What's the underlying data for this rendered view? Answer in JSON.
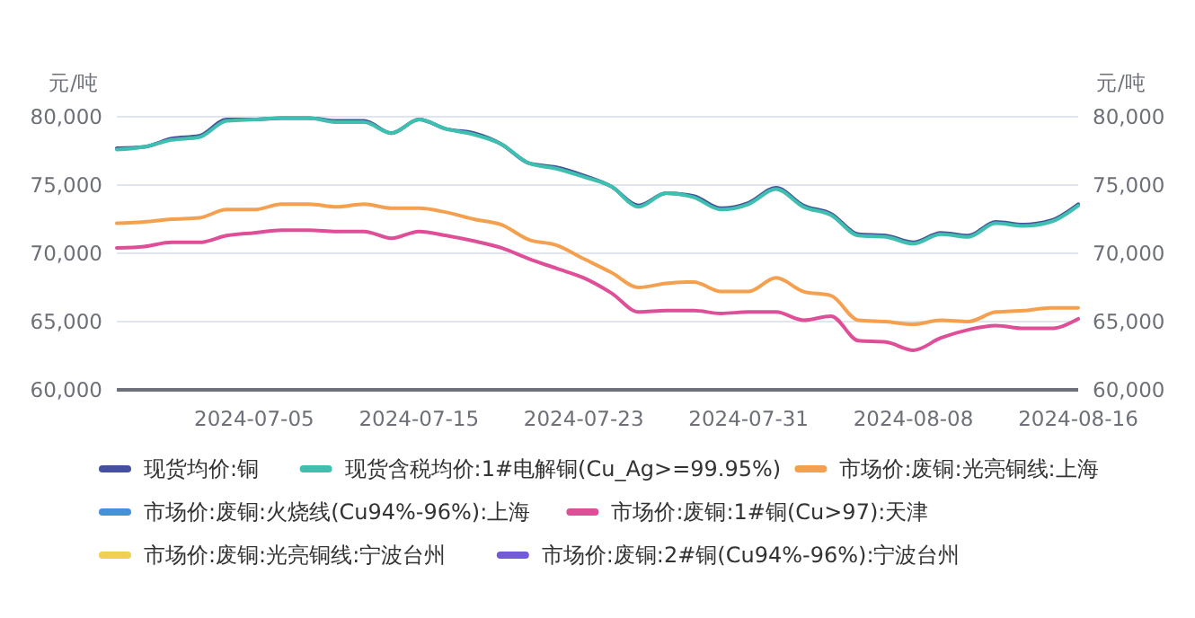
{
  "chart_data": {
    "type": "line",
    "ylabel": "元/吨",
    "y2label": "元/吨",
    "categories": [
      null,
      null,
      null,
      null,
      null,
      "2024-07-05",
      null,
      null,
      null,
      null,
      null,
      "2024-07-15",
      null,
      null,
      null,
      null,
      null,
      "2024-07-23",
      null,
      null,
      null,
      null,
      null,
      "2024-07-31",
      null,
      null,
      null,
      null,
      null,
      "2024-08-08",
      null,
      null,
      null,
      null,
      null,
      "2024-08-16"
    ],
    "series": [
      {
        "name": "现货均价:铜",
        "color": "#45529b",
        "values": [
          77700,
          77800,
          78400,
          78600,
          79800,
          79800,
          79900,
          79900,
          79700,
          79700,
          78800,
          79800,
          79100,
          78800,
          78000,
          76600,
          76300,
          75700,
          74900,
          73500,
          74400,
          74200,
          73300,
          73700,
          74800,
          73500,
          72900,
          71400,
          71300,
          70800,
          71500,
          71300,
          72300,
          72100,
          72400,
          73600
        ]
      },
      {
        "name": "现货含税均价:1#电解铜(Cu_Ag>=99.95%)",
        "color": "#3fbfb0",
        "values": [
          77600,
          77800,
          78300,
          78500,
          79700,
          79800,
          79900,
          79900,
          79600,
          79600,
          78800,
          79800,
          79100,
          78700,
          78000,
          76600,
          76200,
          75600,
          74900,
          73400,
          74400,
          74100,
          73200,
          73600,
          74700,
          73400,
          72800,
          71300,
          71200,
          70700,
          71400,
          71200,
          72200,
          72000,
          72300,
          73500
        ]
      },
      {
        "name": "市场价:废铜:光亮铜线:上海",
        "color": "#f5a04e",
        "values": [
          72200,
          72300,
          72500,
          72600,
          73200,
          73200,
          73600,
          73600,
          73400,
          73600,
          73300,
          73300,
          73000,
          72500,
          72100,
          71000,
          70600,
          69600,
          68600,
          67500,
          67800,
          67900,
          67200,
          67200,
          68200,
          67200,
          66900,
          65100,
          65000,
          64800,
          65100,
          65000,
          65700,
          65800,
          66000,
          66000
        ]
      },
      {
        "name": "市场价:废铜:火烧线(Cu94%-96%):上海",
        "color": "#4a8fd9",
        "values": [
          null,
          null,
          null,
          null,
          null,
          null,
          null,
          null,
          null,
          null,
          null,
          null,
          null,
          null,
          null,
          null,
          null,
          null,
          null,
          null,
          null,
          null,
          null,
          null,
          null,
          null,
          null,
          null,
          null,
          null,
          null,
          null,
          null,
          null,
          null,
          null
        ]
      },
      {
        "name": "市场价:废铜:1#铜(Cu>97):天津",
        "color": "#df4f98",
        "values": [
          70400,
          70500,
          70800,
          70800,
          71300,
          71500,
          71700,
          71700,
          71600,
          71600,
          71100,
          71600,
          71300,
          70900,
          70400,
          69600,
          68900,
          68200,
          67100,
          65700,
          65800,
          65800,
          65600,
          65700,
          65700,
          65100,
          65400,
          63600,
          63500,
          62900,
          63800,
          64400,
          64700,
          64500,
          64500,
          65200
        ]
      },
      {
        "name": "市场价:废铜:光亮铜线:宁波台州",
        "color": "#f2d04f",
        "values": [
          null,
          null,
          null,
          null,
          null,
          null,
          null,
          null,
          null,
          null,
          null,
          null,
          null,
          null,
          null,
          null,
          null,
          null,
          null,
          null,
          null,
          null,
          null,
          null,
          null,
          null,
          null,
          null,
          null,
          null,
          null,
          null,
          null,
          null,
          null,
          null
        ]
      },
      {
        "name": "市场价:废铜:2#铜(Cu94%-96%):宁波台州",
        "color": "#735ad6",
        "values": [
          null,
          null,
          null,
          null,
          null,
          null,
          null,
          null,
          null,
          null,
          null,
          null,
          null,
          null,
          null,
          null,
          null,
          null,
          null,
          null,
          null,
          null,
          null,
          null,
          null,
          null,
          null,
          null,
          null,
          null,
          null,
          null,
          null,
          null,
          null,
          null
        ]
      }
    ],
    "ylim": [
      60000,
      80000
    ],
    "yticks": [
      {
        "value": 60000,
        "label": "60,000"
      },
      {
        "value": 65000,
        "label": "65,000"
      },
      {
        "value": 70000,
        "label": "70,000"
      },
      {
        "value": 75000,
        "label": "75,000"
      },
      {
        "value": 80000,
        "label": "80,000"
      }
    ],
    "y2lim": [
      60000,
      80000
    ],
    "y2ticks": [
      {
        "value": 60000,
        "label": "60,000"
      },
      {
        "value": 65000,
        "label": "65,000"
      },
      {
        "value": 70000,
        "label": "70,000"
      },
      {
        "value": 75000,
        "label": "75,000"
      },
      {
        "value": 80000,
        "label": "80,000"
      }
    ],
    "grid": "y",
    "legend": "bottom",
    "marker": "none",
    "line_style": "solid"
  }
}
